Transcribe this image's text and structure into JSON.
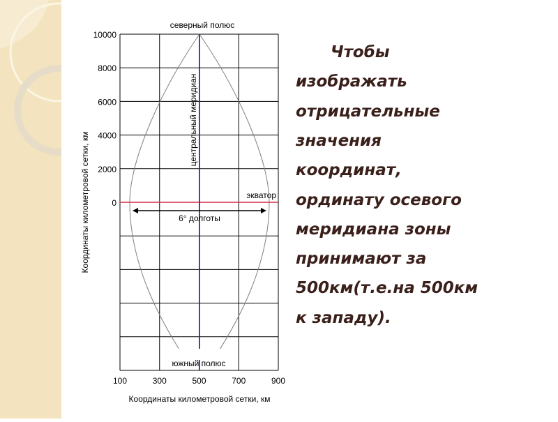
{
  "diagram": {
    "top_label": "северный полюс",
    "bottom_label": "южный полюс",
    "meridian_label": "центральный меридиан",
    "equator_label": "экватор",
    "width_label": "6° долготы",
    "y_axis_label": "Координаты километровой сетки, км",
    "x_axis_label": "Координаты километровой сетки, км",
    "y_ticks": [
      "10000",
      "8000",
      "6000",
      "4000",
      "2000",
      "0"
    ],
    "x_ticks": [
      "100",
      "300",
      "500",
      "700",
      "900"
    ],
    "colors": {
      "equator": "#d0304a",
      "meridian": "#3030a0",
      "grid": "#000000",
      "curve": "#808080"
    }
  },
  "text": {
    "lines": [
      "Чтобы",
      "изображать",
      "отрицательные",
      "значения",
      "координат,",
      "ординату осевого",
      "меридиана зоны",
      "принимают за",
      "500км(т.е.на 500км",
      "к западу)."
    ],
    "color": "#3a1f1a"
  }
}
